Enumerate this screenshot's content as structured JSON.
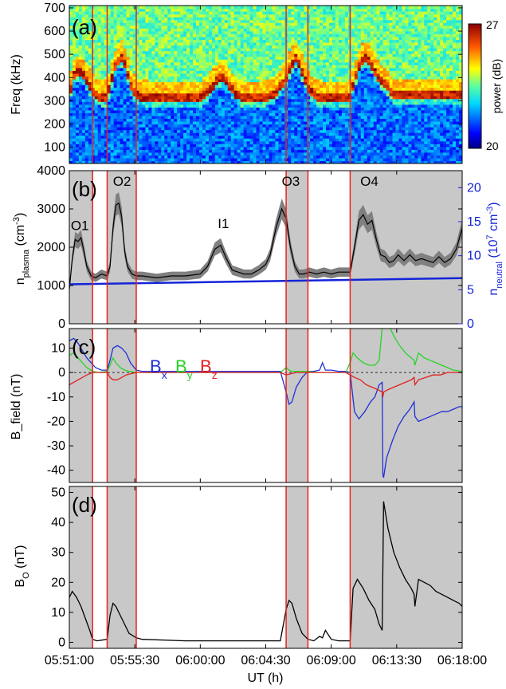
{
  "figure": {
    "x_axis": {
      "label": "UT (h)",
      "tick_labels": [
        "05:51:00",
        "05:55:30",
        "06:00:00",
        "06:04:30",
        "06:09:00",
        "06:13:30",
        "06:18:00"
      ],
      "tick_minutes": [
        0,
        4.5,
        9,
        13.5,
        18,
        22.5,
        27
      ],
      "range_minutes": [
        0,
        27
      ]
    },
    "shaded_intervals_minutes": [
      [
        0,
        1.6
      ],
      [
        2.6,
        4.6
      ],
      [
        14.9,
        16.4
      ],
      [
        19.3,
        27
      ]
    ],
    "red_lines_minutes": [
      1.6,
      2.6,
      4.6,
      14.9,
      16.4,
      19.3
    ],
    "colors": {
      "shade": "#c8c8c8",
      "red_line": "#e8231e",
      "bx": "#1f2fd6",
      "by": "#26d426",
      "bz": "#e02020",
      "neutral": "#1424d8",
      "band": "#808080",
      "axis_right": "#1424d8"
    }
  },
  "chart_data": [
    {
      "type": "heatmap",
      "panel_label": "(a)",
      "ylabel": "Freq (kHz)",
      "ylim": [
        30,
        710
      ],
      "ytick_labels": [
        "100",
        "200",
        "300",
        "400",
        "500",
        "600",
        "700"
      ],
      "ytick_values": [
        100,
        200,
        300,
        400,
        500,
        600,
        700
      ],
      "colorbar": {
        "label": "power (dB)",
        "min": 20,
        "max": 27,
        "min_label": "20",
        "max_label": "27"
      },
      "plasma_line_x_minutes": [
        0,
        0.3,
        0.6,
        0.9,
        1.2,
        1.5,
        1.8,
        2.1,
        2.6,
        3.0,
        3.3,
        3.6,
        3.9,
        4.2,
        4.6,
        5.0,
        6,
        7,
        8,
        9,
        9.5,
        10,
        10.5,
        11,
        11.5,
        12,
        13,
        13.5,
        14,
        14.3,
        14.8,
        15.2,
        15.6,
        16.0,
        16.5,
        17,
        18,
        18.5,
        19,
        19.3,
        19.7,
        20.1,
        20.5,
        21.0,
        21.4,
        21.8,
        22.2,
        22.6,
        23.0,
        23.5,
        24,
        24.5,
        25,
        25.5,
        26,
        26.5,
        27
      ],
      "plasma_line_khz": [
        300,
        380,
        400,
        390,
        360,
        330,
        300,
        290,
        290,
        390,
        450,
        460,
        420,
        340,
        300,
        290,
        285,
        285,
        285,
        285,
        310,
        350,
        380,
        340,
        300,
        285,
        285,
        290,
        300,
        320,
        360,
        420,
        460,
        400,
        320,
        290,
        285,
        285,
        285,
        290,
        380,
        450,
        460,
        400,
        360,
        340,
        300,
        300,
        300,
        300,
        300,
        300,
        300,
        300,
        300,
        300,
        300
      ]
    },
    {
      "type": "line",
      "panel_label": "(b)",
      "ylabel": "n",
      "ylabel_sub": "plasma",
      "ylabel_unit": " (cm",
      "ylabel_exp": "-3",
      "ylabel_close": ")",
      "ylim": [
        0,
        4000
      ],
      "ytick_labels": [
        "0",
        "1000",
        "2000",
        "3000",
        "4000"
      ],
      "ytick_values": [
        0,
        1000,
        2000,
        3000,
        4000
      ],
      "right_axis": {
        "label": "n",
        "label_sub": "neutral",
        "unit_prefix": " (10",
        "unit_exp1": "7",
        "unit_mid": " cm",
        "unit_exp2": "-3",
        "unit_close": ")",
        "ylim": [
          0,
          22.5
        ],
        "tick_labels": [
          "0",
          "5",
          "10",
          "15",
          "20"
        ],
        "tick_values": [
          0,
          5,
          10,
          15,
          20
        ]
      },
      "annotations": [
        {
          "text": "O1",
          "x": 0.1,
          "y": 2450
        },
        {
          "text": "O2",
          "x": 3.0,
          "y": 3600
        },
        {
          "text": "I1",
          "x": 10.2,
          "y": 2500
        },
        {
          "text": "O3",
          "x": 14.6,
          "y": 3600
        },
        {
          "text": "O4",
          "x": 20.0,
          "y": 3600
        }
      ],
      "series": [
        {
          "x": [
            0,
            0.2,
            0.4,
            0.6,
            0.8,
            1.0,
            1.2,
            1.5,
            1.8,
            2.2,
            2.6,
            2.8,
            3.0,
            3.2,
            3.4,
            3.6,
            3.8,
            4.0,
            4.3,
            4.6,
            5,
            6,
            7,
            8,
            9,
            9.5,
            10,
            10.4,
            10.8,
            11.2,
            11.6,
            12,
            12.5,
            13,
            13.5,
            13.8,
            14.2,
            14.6,
            14.9,
            15.2,
            15.5,
            15.8,
            16.1,
            16.5,
            17,
            17.5,
            18,
            18.5,
            19,
            19.3,
            19.6,
            19.9,
            20.2,
            20.5,
            20.8,
            21.1,
            21.4,
            21.7,
            22.0,
            22.3,
            22.6,
            23.0,
            23.4,
            23.8,
            24.2,
            24.6,
            25.0,
            25.4,
            25.8,
            26.2,
            26.6,
            27.0
          ],
          "values": [
            900,
            1700,
            2200,
            2150,
            2250,
            1900,
            1500,
            1250,
            1200,
            1300,
            1250,
            1500,
            2500,
            3100,
            3150,
            2800,
            1900,
            1500,
            1300,
            1250,
            1250,
            1200,
            1250,
            1250,
            1300,
            1500,
            1950,
            2050,
            1700,
            1400,
            1350,
            1300,
            1300,
            1400,
            1550,
            1800,
            2500,
            3000,
            2750,
            2000,
            1500,
            1300,
            1300,
            1350,
            1300,
            1350,
            1300,
            1350,
            1350,
            1350,
            2000,
            2700,
            2850,
            2600,
            2700,
            2200,
            1800,
            1750,
            1600,
            1650,
            1800,
            1650,
            1800,
            1650,
            1700,
            1650,
            1600,
            1750,
            1600,
            1700,
            1950,
            2500
          ]
        },
        {
          "x": [
            0,
            27
          ],
          "values": [
            5.8,
            6.7
          ]
        }
      ]
    },
    {
      "type": "line",
      "panel_label": "(c)",
      "ylabel": "B_field (nT)",
      "ylim": [
        -45,
        18
      ],
      "ytick_labels": [
        "-40",
        "-30",
        "-20",
        "-10",
        "0",
        "10"
      ],
      "ytick_values": [
        -40,
        -30,
        -20,
        -10,
        0,
        10
      ],
      "legend": [
        {
          "name": "B",
          "sub": "x"
        },
        {
          "name": "B",
          "sub": "y"
        },
        {
          "name": "B",
          "sub": "z"
        }
      ],
      "series": [
        {
          "x": [
            0,
            0.3,
            0.6,
            0.9,
            1.2,
            1.5,
            1.8,
            2.2,
            2.6,
            2.8,
            3.0,
            3.3,
            3.6,
            3.9,
            4.2,
            4.6,
            5,
            8,
            12,
            14.5,
            14.9,
            15.1,
            15.3,
            15.6,
            16.0,
            16.4,
            16.8,
            17.2,
            17.4,
            17.6,
            18,
            18.5,
            19.0,
            19.3,
            19.6,
            19.9,
            20.3,
            20.7,
            21.0,
            21.3,
            21.5,
            21.55,
            21.6,
            21.8,
            22.2,
            22.6,
            23.0,
            23.4,
            23.7,
            23.75,
            24.0,
            24.4,
            24.8,
            25.2,
            25.6,
            26.0,
            26.4,
            26.8,
            27.0
          ],
          "values": [
            13,
            14,
            12,
            9,
            6,
            4,
            2,
            1,
            1,
            5,
            10,
            11,
            10,
            8,
            4,
            1,
            0.5,
            0.5,
            0.5,
            0.5,
            -8,
            -13,
            -12,
            -6,
            -2,
            0.5,
            0.5,
            1,
            4,
            1,
            1,
            0.5,
            0.5,
            0,
            -16,
            -19,
            -16,
            -12,
            -10,
            -5,
            -4,
            -42,
            -43,
            -35,
            -28,
            -22,
            -18,
            -15,
            -12,
            -18,
            -20,
            -19,
            -18,
            -17,
            -16,
            -16,
            -15,
            -14,
            -14
          ]
        },
        {
          "x": [
            0,
            0.3,
            0.6,
            0.9,
            1.2,
            1.6,
            2.0,
            2.6,
            2.8,
            3.0,
            3.2,
            3.5,
            3.8,
            4.1,
            4.6,
            5,
            8,
            12,
            14.5,
            14.9,
            15.1,
            15.3,
            15.6,
            16.0,
            16.4,
            17,
            17.5,
            18,
            19.0,
            19.3,
            19.5,
            19.8,
            20.2,
            20.6,
            21.0,
            21.3,
            21.55,
            21.6,
            21.9,
            22.3,
            22.7,
            23.1,
            23.5,
            23.7,
            23.75,
            24.0,
            24.4,
            24.8,
            25.2,
            25.6,
            26.0,
            26.4,
            27.0
          ],
          "values": [
            7,
            8,
            6,
            4,
            2,
            0.5,
            0,
            0.5,
            3,
            6,
            4,
            2,
            1,
            0.5,
            0,
            0,
            0,
            0,
            0,
            2,
            1,
            0.5,
            0.5,
            0.5,
            0.5,
            0,
            0,
            0,
            0,
            4,
            8,
            6,
            4,
            3,
            3,
            5,
            22,
            24,
            20,
            15,
            11,
            8,
            6,
            5,
            3,
            8,
            6,
            5,
            4,
            3,
            2,
            1,
            0.5
          ]
        },
        {
          "x": [
            0,
            0.3,
            0.6,
            0.9,
            1.2,
            1.6,
            2.0,
            2.6,
            2.8,
            3.0,
            3.3,
            3.6,
            3.9,
            4.2,
            4.6,
            5,
            8,
            12,
            14.5,
            14.9,
            15.2,
            15.6,
            16.0,
            16.4,
            17,
            18,
            19.0,
            19.3,
            19.6,
            20.0,
            20.4,
            20.8,
            21.2,
            21.5,
            21.55,
            21.6,
            21.9,
            22.3,
            22.7,
            23.1,
            23.5,
            23.7,
            23.75,
            24.0,
            24.5,
            25.0,
            25.5,
            26.0,
            27.0
          ],
          "values": [
            -5,
            -4,
            -3,
            -2,
            -1,
            0,
            0,
            0,
            -2,
            -3,
            -3,
            -2,
            -1,
            -0.5,
            0,
            0,
            0,
            0,
            0,
            -1,
            -0.5,
            0,
            0,
            0,
            0,
            0,
            0,
            -1,
            -2,
            -3,
            -5,
            -6,
            -7,
            -8,
            -10,
            -8,
            -7,
            -6,
            -5,
            -4,
            -3,
            -2,
            -5,
            -3,
            -2,
            -1,
            -1,
            0,
            0
          ]
        }
      ]
    },
    {
      "type": "line",
      "panel_label": "(d)",
      "ylabel": "B",
      "ylabel_sub": "O",
      "ylabel_unit": " (nT)",
      "ylim": [
        -2,
        52
      ],
      "ytick_labels": [
        "0",
        "10",
        "20",
        "30",
        "40",
        "50"
      ],
      "ytick_values": [
        0,
        10,
        20,
        30,
        40,
        50
      ],
      "series": [
        {
          "x": [
            0,
            0.2,
            0.5,
            0.8,
            1.1,
            1.4,
            1.6,
            1.9,
            2.6,
            2.8,
            3.0,
            3.2,
            3.5,
            3.8,
            4.1,
            4.6,
            5,
            8,
            12,
            14.5,
            14.9,
            15.1,
            15.3,
            15.6,
            16.0,
            16.4,
            16.8,
            17.2,
            17.4,
            17.6,
            18,
            18.5,
            19.0,
            19.3,
            19.5,
            19.8,
            20.2,
            20.6,
            21.0,
            21.3,
            21.5,
            21.55,
            21.6,
            21.9,
            22.3,
            22.7,
            23.1,
            23.5,
            23.7,
            23.75,
            24.0,
            24.4,
            24.8,
            25.2,
            25.6,
            26.0,
            26.4,
            26.8,
            27.0
          ],
          "values": [
            15,
            17,
            15,
            12,
            8,
            4,
            1,
            0.5,
            1,
            9,
            13,
            12,
            9,
            6,
            3,
            1.5,
            1,
            0.5,
            0.5,
            0.5,
            11,
            14,
            13,
            8,
            3,
            1,
            0.5,
            2,
            1.5,
            4,
            1,
            0.5,
            0.5,
            0.5,
            18,
            21,
            18,
            14,
            11,
            6,
            4,
            25,
            47,
            38,
            30,
            25,
            21,
            18,
            16,
            12,
            21,
            20,
            19,
            17,
            16,
            15,
            14,
            13,
            12
          ]
        }
      ]
    }
  ]
}
